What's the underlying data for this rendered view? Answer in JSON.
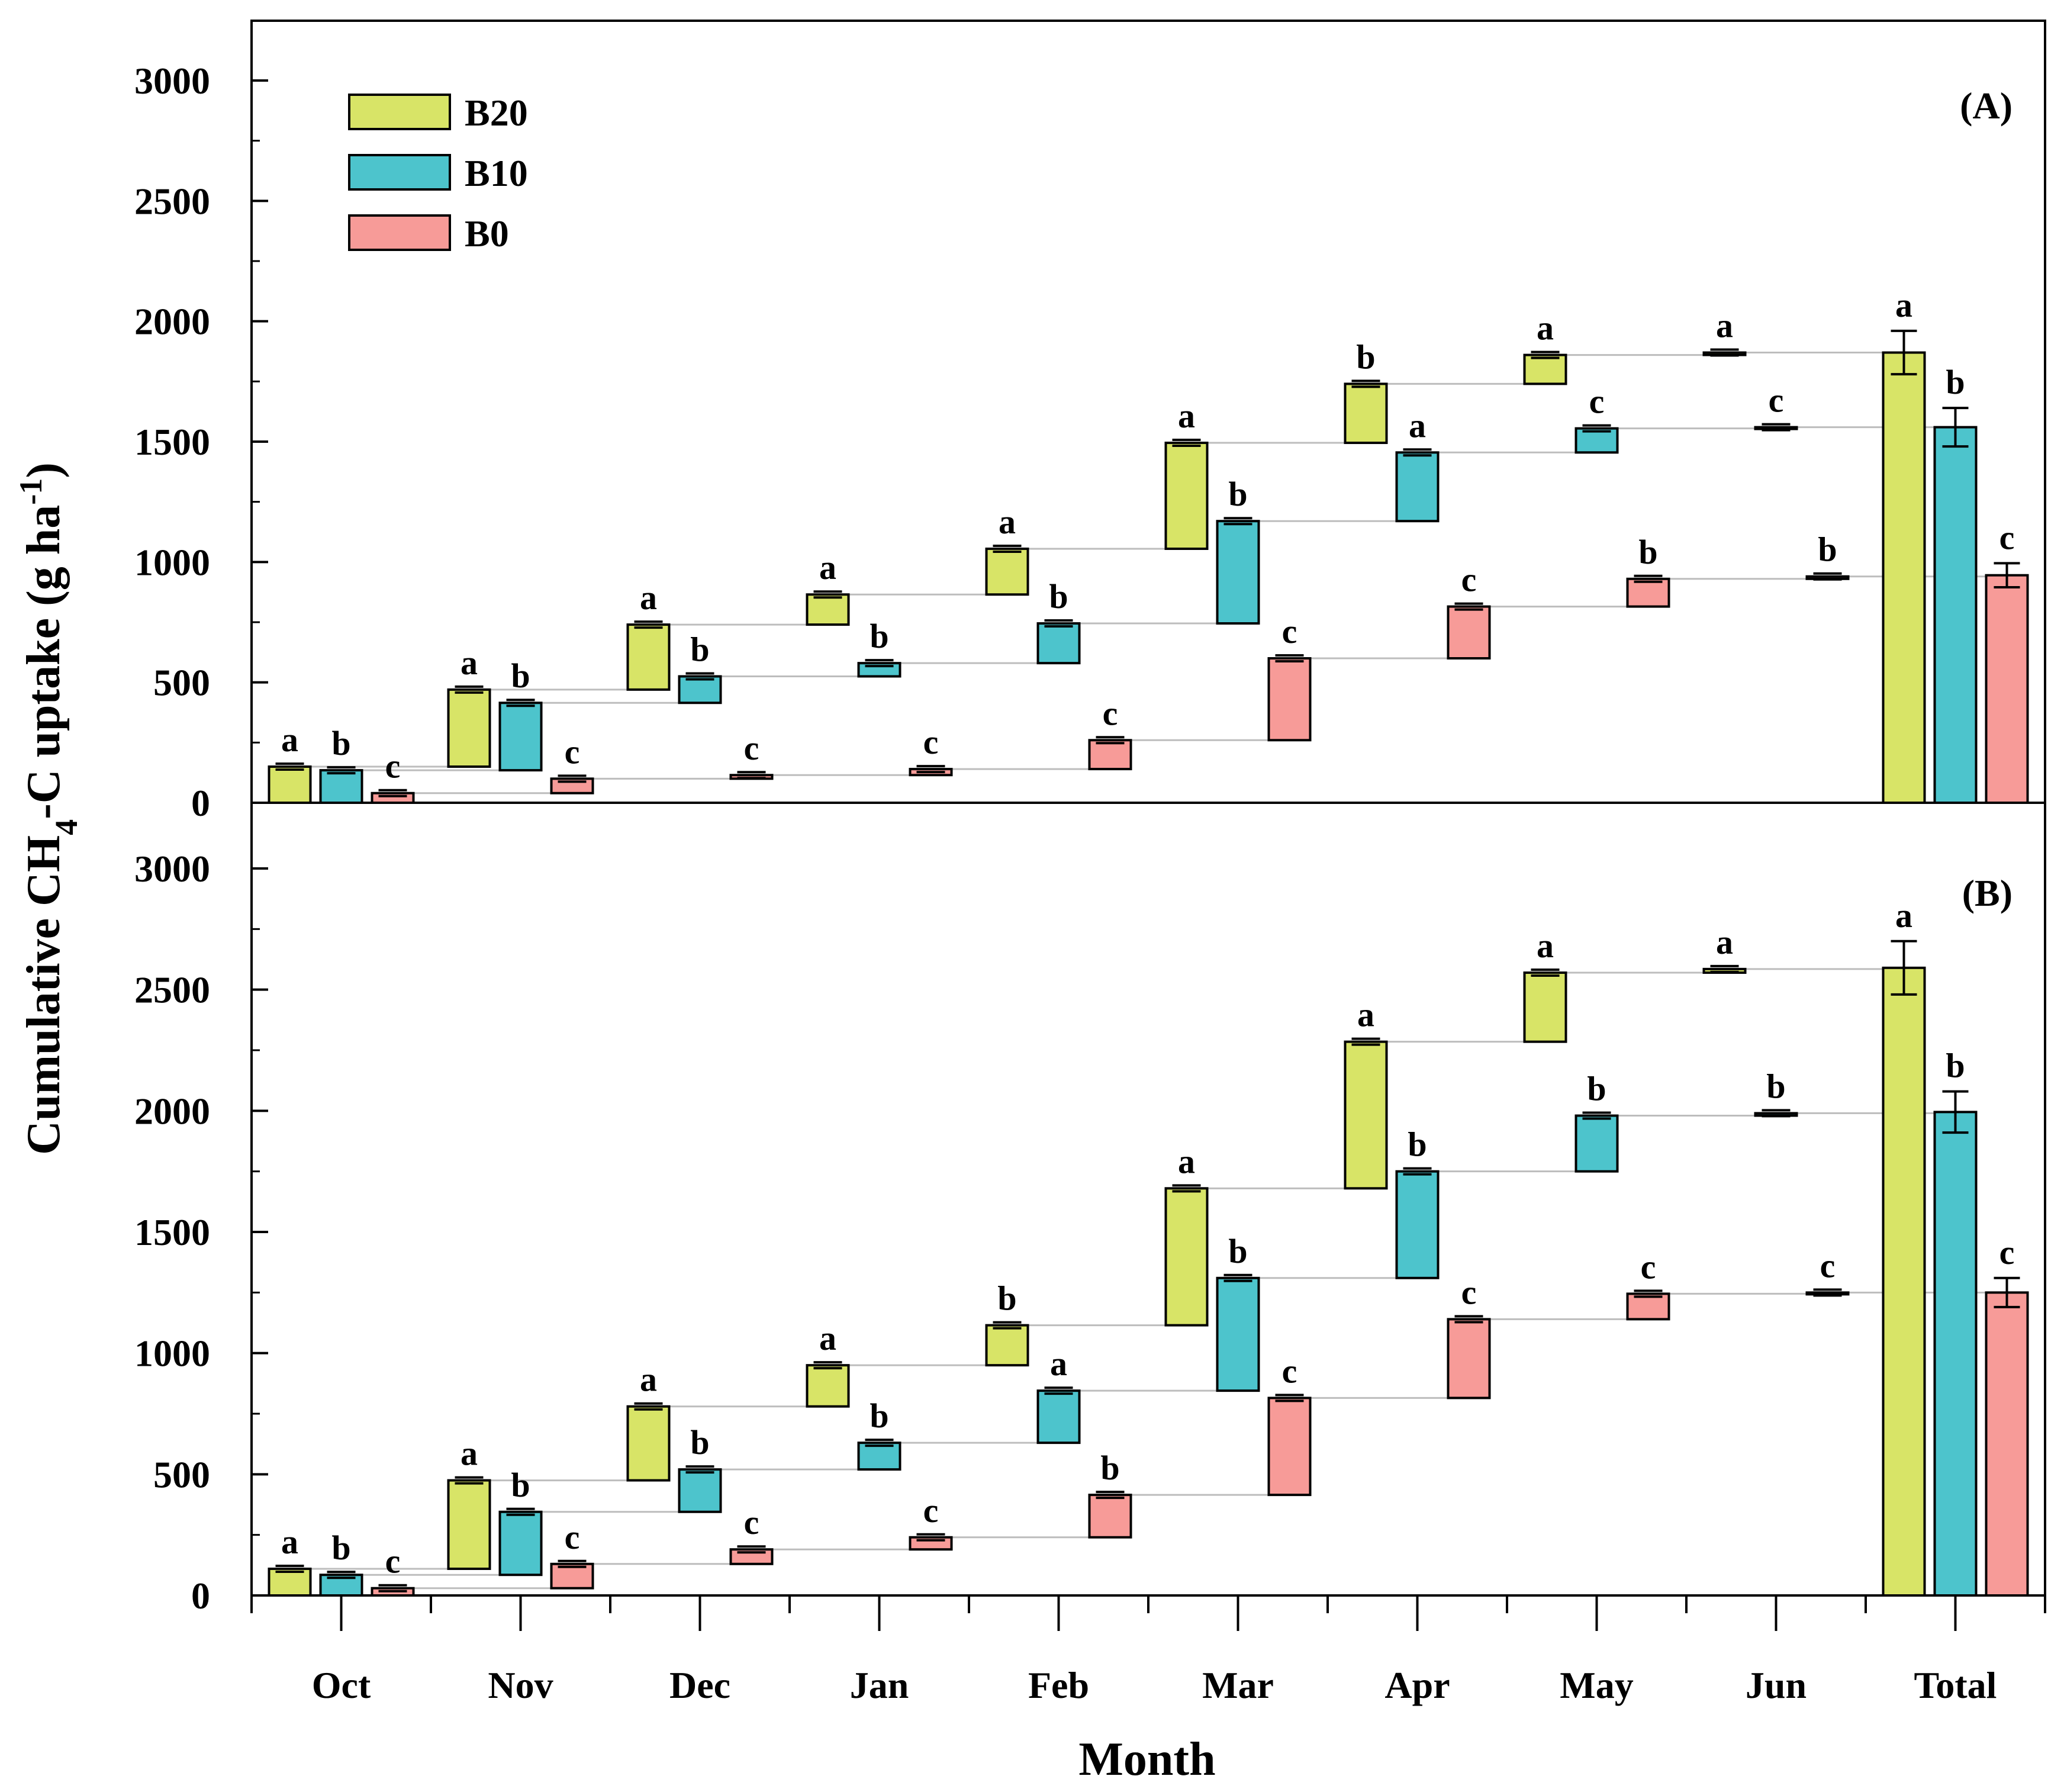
{
  "chart_data": {
    "type": "waterfall-bar",
    "xlabel": "Month",
    "ylabel_parts": [
      "Cumulative CH",
      "4",
      "-C uptake (g ha",
      "-1",
      ")"
    ],
    "categories": [
      "Oct",
      "Nov",
      "Dec",
      "Jan",
      "Feb",
      "Mar",
      "Apr",
      "May",
      "Jun",
      "Total"
    ],
    "yticks": [
      0,
      500,
      1000,
      1500,
      2000,
      2500,
      3000
    ],
    "ylim": [
      0,
      3200
    ],
    "legend": [
      {
        "name": "B20",
        "color": "#d8e467"
      },
      {
        "name": "B10",
        "color": "#4dc4cc"
      },
      {
        "name": "B0",
        "color": "#f79b98"
      }
    ],
    "panels": [
      {
        "label": "(A)",
        "series": [
          {
            "name": "B20",
            "color": "#d8e467",
            "cumulative": [
              150,
              470,
              740,
              865,
              1055,
              1495,
              1740,
              1860,
              1870
            ],
            "letters": [
              "a",
              "a",
              "a",
              "a",
              "a",
              "a",
              "b",
              "a",
              "a"
            ],
            "total": 1870,
            "total_err": 90,
            "total_letter": "a"
          },
          {
            "name": "B10",
            "color": "#4dc4cc",
            "cumulative": [
              135,
              415,
              525,
              580,
              745,
              1170,
              1455,
              1555,
              1560
            ],
            "letters": [
              "b",
              "b",
              "b",
              "b",
              "b",
              "b",
              "a",
              "c",
              "c"
            ],
            "total": 1560,
            "total_err": 80,
            "total_letter": "b"
          },
          {
            "name": "B0",
            "color": "#f79b98",
            "cumulative": [
              40,
              100,
              115,
              140,
              260,
              600,
              815,
              930,
              940
            ],
            "letters": [
              "c",
              "c",
              "c",
              "c",
              "c",
              "c",
              "c",
              "b",
              "b"
            ],
            "total": 945,
            "total_err": 50,
            "total_letter": "c"
          }
        ]
      },
      {
        "label": "(B)",
        "series": [
          {
            "name": "B20",
            "color": "#d8e467",
            "cumulative": [
              110,
              475,
              780,
              950,
              1115,
              1680,
              2285,
              2570,
              2585
            ],
            "letters": [
              "a",
              "a",
              "a",
              "a",
              "b",
              "a",
              "a",
              "a",
              "a"
            ],
            "total": 2590,
            "total_err": 110,
            "total_letter": "a"
          },
          {
            "name": "B10",
            "color": "#4dc4cc",
            "cumulative": [
              85,
              345,
              520,
              630,
              845,
              1310,
              1750,
              1980,
              1990
            ],
            "letters": [
              "b",
              "b",
              "b",
              "b",
              "a",
              "b",
              "b",
              "b",
              "b"
            ],
            "total": 1995,
            "total_err": 85,
            "total_letter": "b"
          },
          {
            "name": "B0",
            "color": "#f79b98",
            "cumulative": [
              30,
              130,
              190,
              240,
              415,
              815,
              1140,
              1245,
              1250
            ],
            "letters": [
              "c",
              "c",
              "c",
              "c",
              "b",
              "c",
              "c",
              "c",
              "c"
            ],
            "total": 1250,
            "total_err": 60,
            "total_letter": "c"
          }
        ]
      }
    ]
  }
}
